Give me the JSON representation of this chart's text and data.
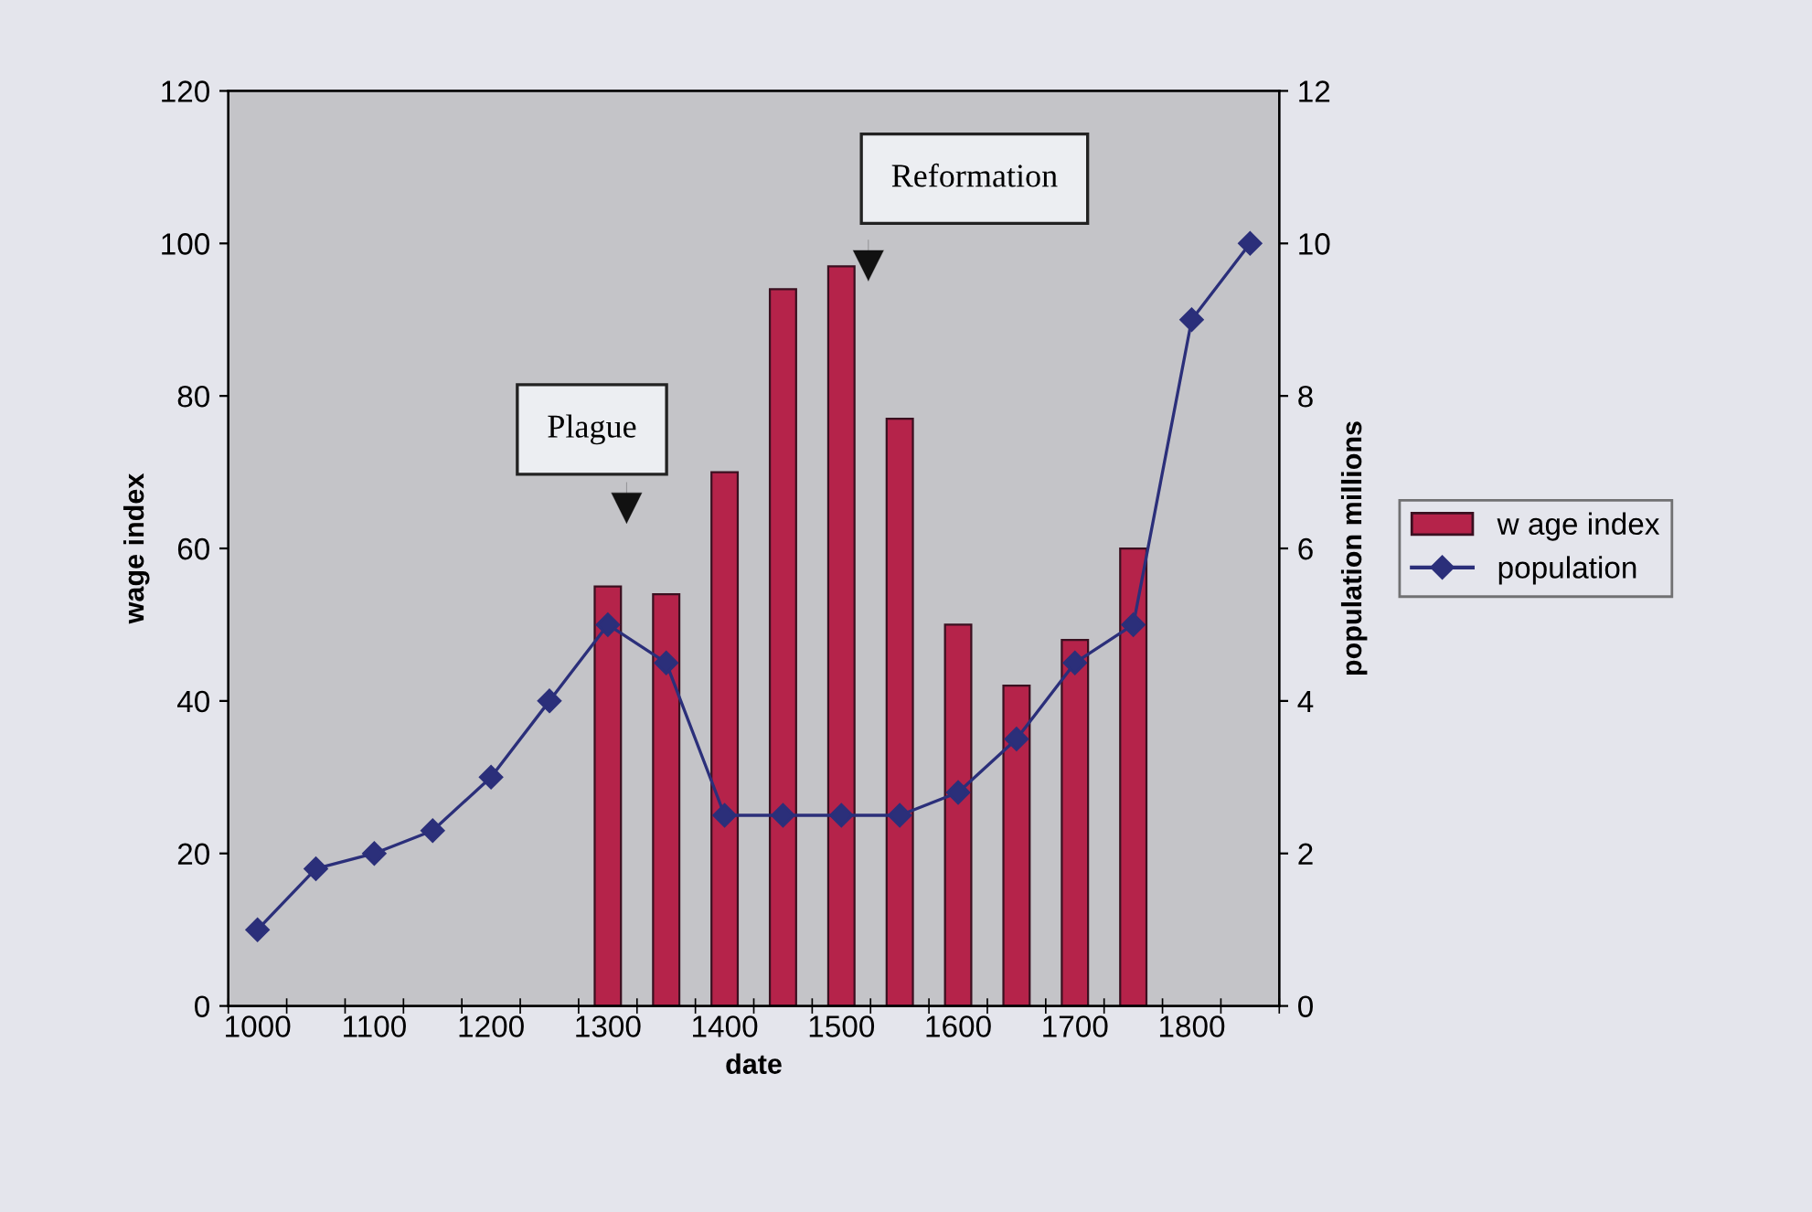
{
  "chart_data": {
    "type": "bar",
    "xlabel": "date",
    "ylabel": "wage index",
    "y2label": "population millions",
    "categories": [
      "1000",
      null,
      "1100",
      null,
      "1200",
      null,
      "1300",
      null,
      "1400",
      null,
      "1500",
      null,
      "1600",
      null,
      "1700",
      null,
      "1800",
      null
    ],
    "series": [
      {
        "name": "w age index",
        "color": "#b5234a",
        "values": [
          null,
          null,
          null,
          null,
          null,
          null,
          55,
          54,
          70,
          94,
          97,
          77,
          50,
          42,
          48,
          60,
          null,
          null
        ]
      },
      {
        "name": "population",
        "type": "line",
        "axis": "y2",
        "color": "#2b2f7a",
        "marker": "diamond",
        "values": [
          1.0,
          1.8,
          2.0,
          2.3,
          3.0,
          4.0,
          5.0,
          4.5,
          2.5,
          2.5,
          2.5,
          2.5,
          2.8,
          3.5,
          4.5,
          5.0,
          9.0,
          10.0
        ]
      }
    ],
    "ylim": [
      0,
      120
    ],
    "yticks": [
      0,
      20,
      40,
      60,
      80,
      100,
      120
    ],
    "y2lim": [
      0,
      12
    ],
    "y2ticks": [
      0,
      2,
      4,
      6,
      8,
      10,
      12
    ],
    "annotations": [
      "Plague",
      "Reformation"
    ],
    "legend": "right",
    "grid": false
  }
}
